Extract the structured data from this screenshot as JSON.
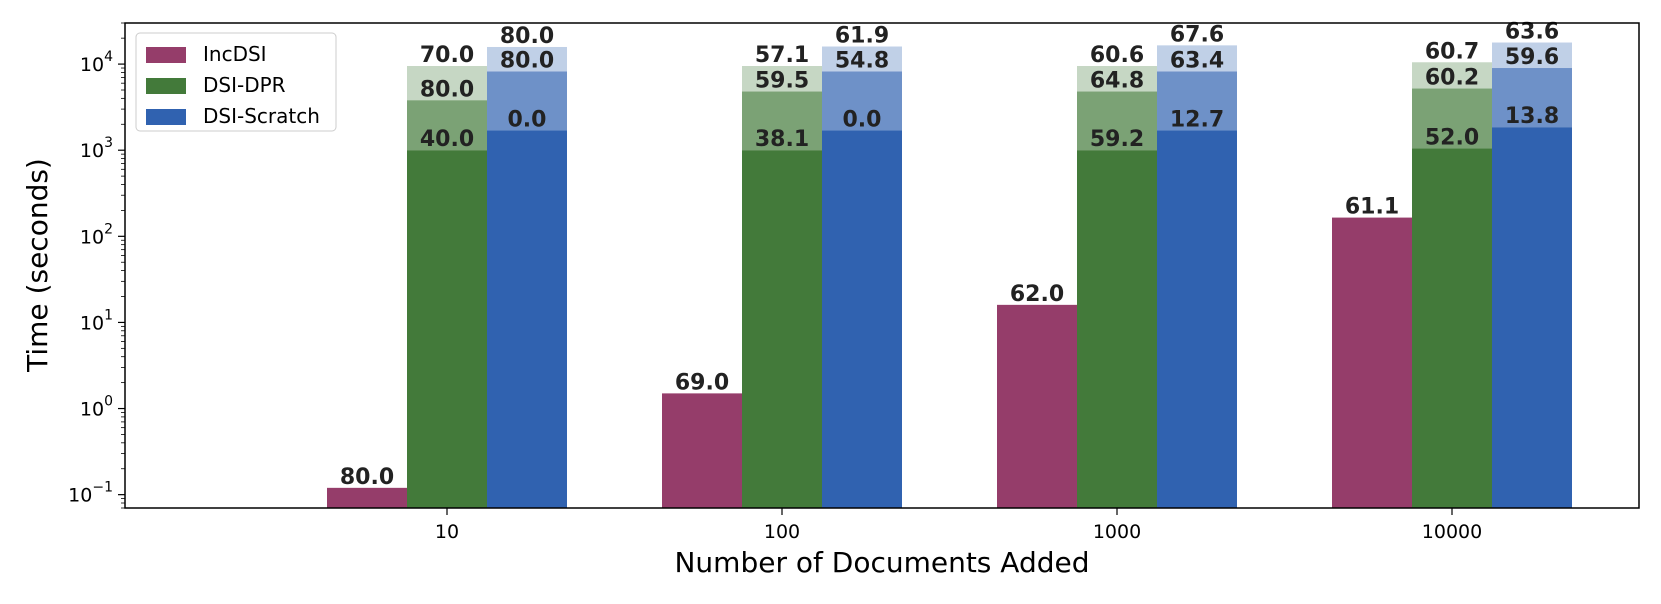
{
  "chart_data": {
    "type": "bar",
    "scale": "log",
    "xlabel": "Number of Documents Added",
    "ylabel": "Time (seconds)",
    "categories": [
      "10",
      "100",
      "1000",
      "10000"
    ],
    "ylim": [
      0.07,
      30000
    ],
    "yticks": [
      {
        "value": 0.1,
        "base": "10",
        "exp": "−1"
      },
      {
        "value": 1,
        "base": "10",
        "exp": "0"
      },
      {
        "value": 10,
        "base": "10",
        "exp": "1"
      },
      {
        "value": 100,
        "base": "10",
        "exp": "2"
      },
      {
        "value": 1000,
        "base": "10",
        "exp": "3"
      },
      {
        "value": 10000,
        "base": "10",
        "exp": "4"
      }
    ],
    "legend_position": "top-left",
    "series": [
      {
        "name": "IncDSI",
        "color": "#953d6a",
        "segments": [
          [
            {
              "value": 0.12,
              "label": "80.0"
            }
          ],
          [
            {
              "value": 1.5,
              "label": "69.0"
            }
          ],
          [
            {
              "value": 16,
              "label": "62.0"
            }
          ],
          [
            {
              "value": 165,
              "label": "61.1"
            }
          ]
        ]
      },
      {
        "name": "DSI-DPR",
        "color": "#437a3a",
        "segments": [
          [
            {
              "value": 1000,
              "label": "40.0"
            },
            {
              "value": 3800,
              "label": "80.0"
            },
            {
              "value": 9500,
              "label": "70.0"
            }
          ],
          [
            {
              "value": 1000,
              "label": "38.1"
            },
            {
              "value": 4800,
              "label": "59.5"
            },
            {
              "value": 9500,
              "label": "57.1"
            }
          ],
          [
            {
              "value": 1000,
              "label": "59.2"
            },
            {
              "value": 4800,
              "label": "64.8"
            },
            {
              "value": 9500,
              "label": "60.6"
            }
          ],
          [
            {
              "value": 1050,
              "label": "52.0"
            },
            {
              "value": 5200,
              "label": "60.2"
            },
            {
              "value": 10500,
              "label": "60.7"
            }
          ]
        ]
      },
      {
        "name": "DSI-Scratch",
        "color": "#3062b0",
        "segments": [
          [
            {
              "value": 1700,
              "label": "0.0"
            },
            {
              "value": 8200,
              "label": "80.0"
            },
            {
              "value": 15800,
              "label": "80.0"
            }
          ],
          [
            {
              "value": 1700,
              "label": "0.0"
            },
            {
              "value": 8200,
              "label": "54.8"
            },
            {
              "value": 16000,
              "label": "61.9"
            }
          ],
          [
            {
              "value": 1700,
              "label": "12.7"
            },
            {
              "value": 8200,
              "label": "63.4"
            },
            {
              "value": 16500,
              "label": "67.6"
            }
          ],
          [
            {
              "value": 1850,
              "label": "13.8"
            },
            {
              "value": 9000,
              "label": "59.6"
            },
            {
              "value": 17800,
              "label": "63.6"
            }
          ]
        ]
      }
    ]
  }
}
